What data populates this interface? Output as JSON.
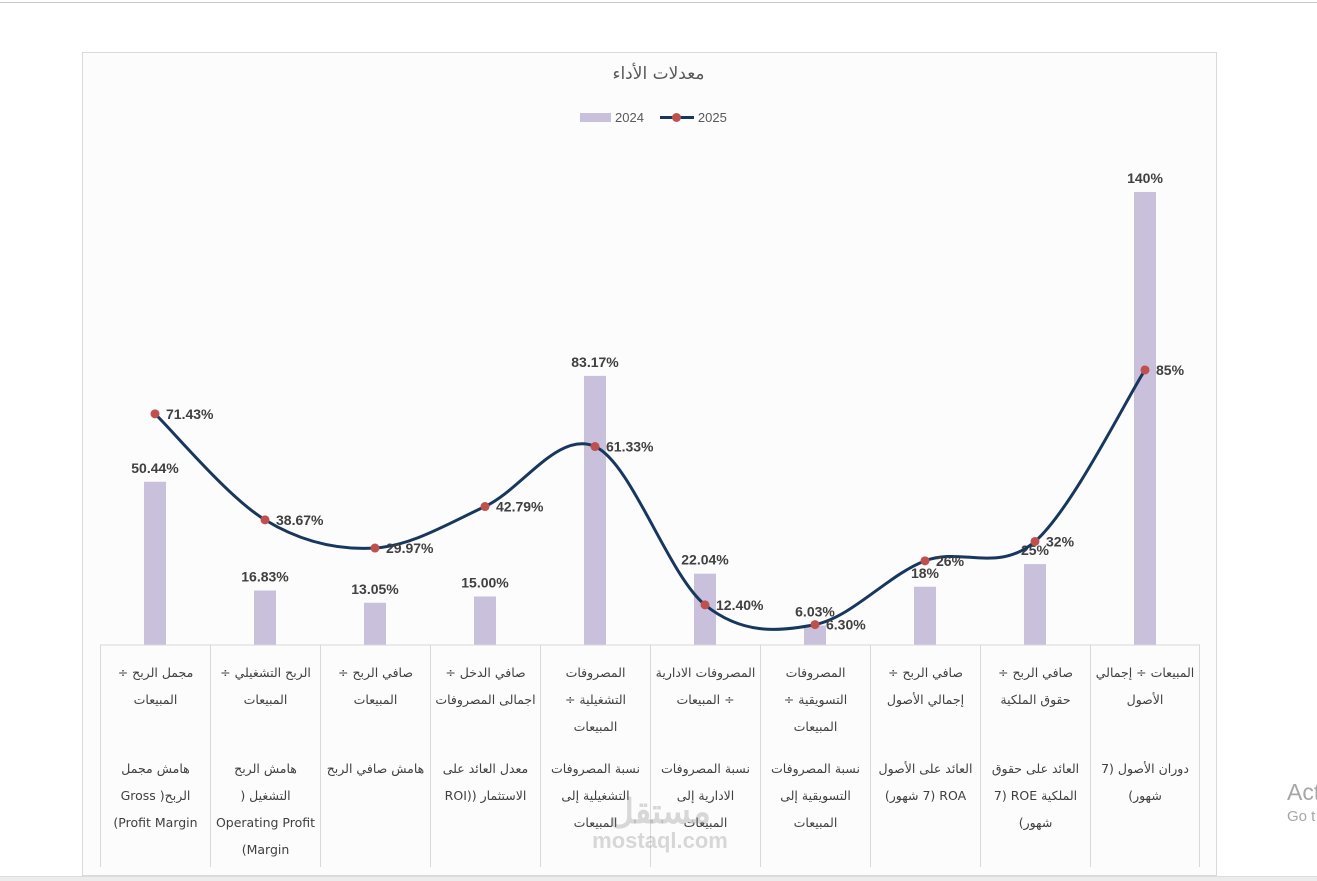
{
  "chart_data": {
    "type": "bar+line",
    "title": "معدلات الأداء",
    "xlabel": "",
    "ylabel": "",
    "ylim": [
      0,
      145
    ],
    "grid": false,
    "legend_position": "top",
    "categories": [
      {
        "formula": "مجمل الربح ÷ المبيعات",
        "name": "هامش مجمل الربح( Gross Profit Margin)"
      },
      {
        "formula": "الربح التشغيلي ÷ المبيعات",
        "name": "هامش الربح التشغيل ( Operating Profit Margin)"
      },
      {
        "formula": "صافي الربح ÷ المبيعات",
        "name": "هامش صافي الربح"
      },
      {
        "formula": "صافي الدخل ÷ اجمالى المصروفات",
        "name": "معدل العائد على الاستثمار ((ROI"
      },
      {
        "formula": "المصروفات التشغيلية ÷ المبيعات",
        "name": "نسبة المصروفات التشغيلية إلى المبيعات"
      },
      {
        "formula": "المصروفات الادارية ÷ المبيعات",
        "name": "نسبة المصروفات الادارية إلى المبيعات"
      },
      {
        "formula": "المصروفات التسويقية ÷ المبيعات",
        "name": "نسبة المصروفات التسويقية إلى المبيعات"
      },
      {
        "formula": "صافي الربح ÷ إجمالي الأصول",
        "name": "العائد على الأصول ROA (7 شهور)"
      },
      {
        "formula": "صافي الربح ÷ حقوق الملكية",
        "name": "العائد على حقوق الملكية ROE (7 شهور)"
      },
      {
        "formula": "المبيعات ÷ إجمالي الأصول",
        "name": "دوران الأصول (7 شهور)"
      }
    ],
    "series": [
      {
        "name": "2024",
        "type": "bar",
        "color": "#c9c0dc",
        "values": [
          50.44,
          16.83,
          13.05,
          15.0,
          83.17,
          22.04,
          6.03,
          18,
          25,
          140
        ],
        "labels": [
          "50.44%",
          "16.83%",
          "13.05%",
          "15.00%",
          "83.17%",
          "22.04%",
          "6.03%",
          "18%",
          "25%",
          "140%"
        ]
      },
      {
        "name": "2025",
        "type": "line",
        "smooth": true,
        "color": "#17375e",
        "marker_color": "#c0504d",
        "values": [
          71.43,
          38.67,
          29.97,
          42.79,
          61.33,
          12.4,
          6.3,
          26,
          32,
          85
        ],
        "labels": [
          "71.43%",
          "38.67%",
          "29.97%",
          "42.79%",
          "61.33%",
          "12.40%",
          "6.30%",
          "26%",
          "32%",
          "85%"
        ]
      }
    ]
  },
  "legend": {
    "items": [
      {
        "label": "2024"
      },
      {
        "label": "2025"
      }
    ]
  },
  "watermark": {
    "arabic": "مستقل",
    "latin": "mostaql.com"
  },
  "os_overlay": {
    "line1": "Act",
    "line2": "Go t"
  }
}
